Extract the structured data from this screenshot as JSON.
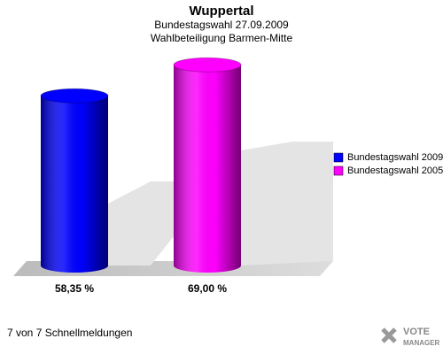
{
  "chart_data": {
    "type": "bar",
    "title": "Wuppertal",
    "subtitle": [
      "Bundestagswahl 27.09.2009",
      "Wahlbeteiligung Barmen-Mitte"
    ],
    "categories": [
      null
    ],
    "series": [
      {
        "name": "Bundestagswahl 2009",
        "color": "#0000ff",
        "values": [
          58.35
        ],
        "value_labels": [
          "58,35 %"
        ]
      },
      {
        "name": "Bundestagswahl 2005",
        "color": "#ff00ff",
        "values": [
          69.0
        ],
        "value_labels": [
          "69,00 %"
        ]
      }
    ],
    "ylim": [
      0,
      70
    ],
    "legend": "right"
  },
  "footer": "7 von 7 Schnellmeldungen",
  "logo": [
    "VOTE",
    "MANAGER"
  ]
}
